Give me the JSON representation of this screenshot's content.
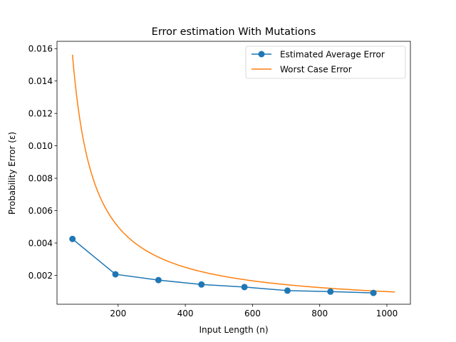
{
  "chart_data": {
    "type": "line",
    "title": "Error estimation With Mutations",
    "xlabel": "Input Length (n)",
    "ylabel": "Probability Error (ε)",
    "xlim": [
      18,
      1070
    ],
    "ylim": [
      0.00022,
      0.01645
    ],
    "x_ticks": [
      200,
      400,
      600,
      800,
      1000
    ],
    "y_ticks": [
      0.002,
      0.004,
      0.006,
      0.008,
      0.01,
      0.012,
      0.014,
      0.016
    ],
    "x_tick_labels": [
      "200",
      "400",
      "600",
      "800",
      "1000"
    ],
    "y_tick_labels": [
      "0.002",
      "0.004",
      "0.006",
      "0.008",
      "0.010",
      "0.012",
      "0.014",
      "0.016"
    ],
    "grid": false,
    "legend_position": "upper right",
    "series": [
      {
        "name": "Estimated Average Error",
        "color": "#1f77b4",
        "marker": "circle",
        "x": [
          64,
          192,
          320,
          448,
          576,
          704,
          832,
          960
        ],
        "y": [
          0.00425,
          0.00207,
          0.00171,
          0.00144,
          0.00128,
          0.00106,
          0.001,
          0.00092
        ]
      },
      {
        "name": "Worst Case Error",
        "color": "#ff7f0e",
        "marker": "none",
        "function": "1/n",
        "x": [
          64,
          80,
          96,
          112,
          128,
          160,
          192,
          224,
          256,
          320,
          384,
          448,
          512,
          576,
          640,
          704,
          768,
          832,
          896,
          960,
          1024
        ],
        "y": [
          0.015625,
          0.0125,
          0.010417,
          0.008929,
          0.0078125,
          0.00625,
          0.005208,
          0.004464,
          0.003906,
          0.003125,
          0.002604,
          0.002232,
          0.001953,
          0.001736,
          0.0015625,
          0.00142,
          0.001302,
          0.001202,
          0.001116,
          0.001042,
          0.000977
        ]
      }
    ]
  }
}
